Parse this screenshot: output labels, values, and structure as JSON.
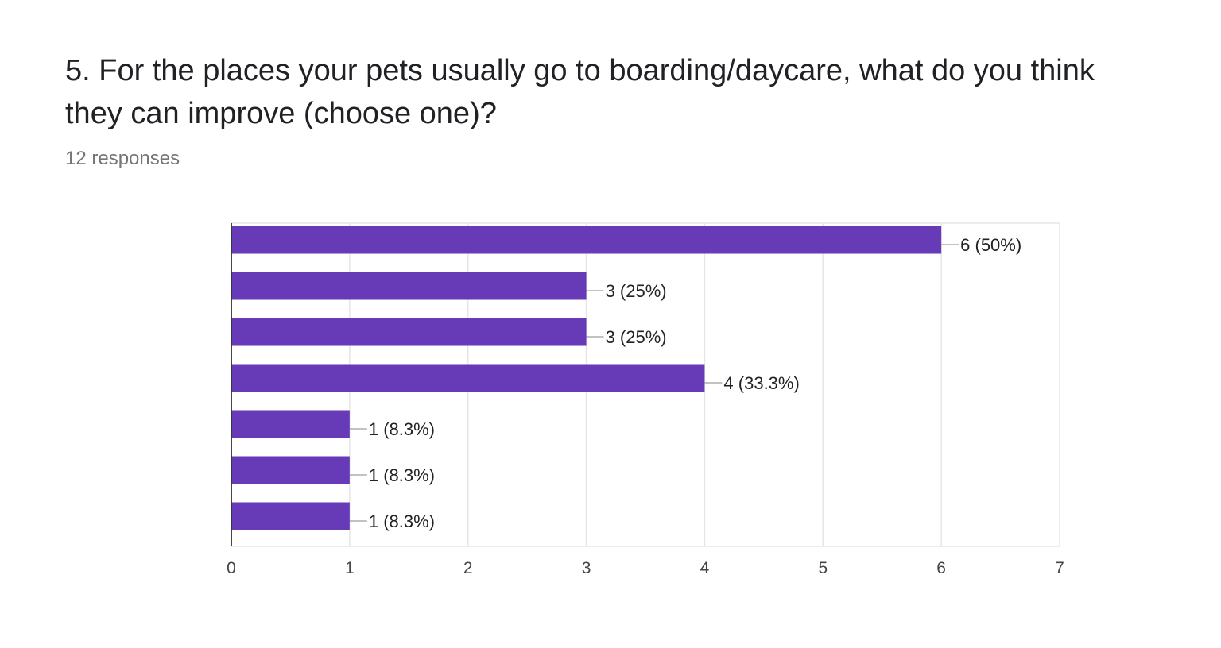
{
  "question": {
    "title": "5. For the places your pets usually go to boarding/daycare, what do you think they can improve (choose one)?",
    "responses": "12 responses"
  },
  "colors": {
    "bar": "#673ab7",
    "grid": "#e6e6e6",
    "axis": "#333333",
    "leader": "#9e9e9e"
  },
  "chart_data": {
    "type": "bar",
    "orientation": "horizontal",
    "categories": [
      "",
      "",
      "",
      "",
      "",
      "",
      ""
    ],
    "values": [
      6,
      3,
      3,
      4,
      1,
      1,
      1
    ],
    "labels": [
      "6 (50%)",
      "3 (25%)",
      "3 (25%)",
      "4 (33.3%)",
      "1 (8.3%)",
      "1 (8.3%)",
      "1 (8.3%)"
    ],
    "xlim": [
      0,
      7
    ],
    "xticks": [
      "0",
      "1",
      "2",
      "3",
      "4",
      "5",
      "6",
      "7"
    ],
    "grid": true,
    "legend": "none"
  }
}
